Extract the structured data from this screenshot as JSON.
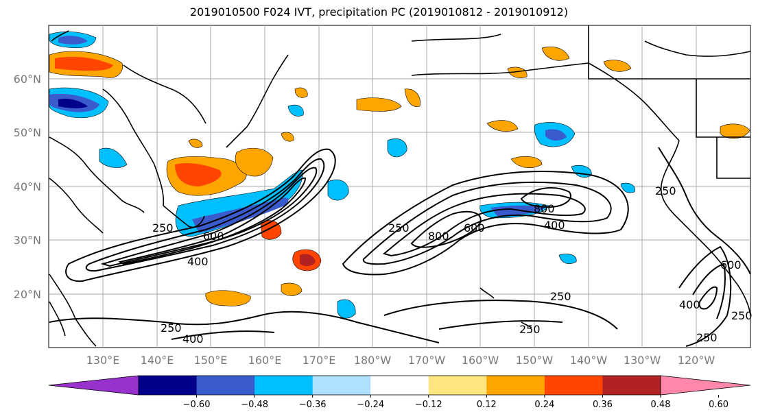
{
  "title": "2019010500 F024 IVT, precipitation PC (2019010812 - 2019010912)",
  "lat_labels": [
    "60°N",
    "50°N",
    "40°N",
    "30°N",
    "20°N"
  ],
  "lon_labels": [
    "130°E",
    "140°E",
    "150°E",
    "160°E",
    "170°E",
    "180°W",
    "170°W",
    "160°W",
    "150°W",
    "140°W",
    "130°W",
    "120°W"
  ],
  "colorbar": {
    "ticks": [
      "−0.60",
      "−0.48",
      "−0.36",
      "−0.24",
      "−0.12",
      "0.12",
      "0.24",
      "0.36",
      "0.48",
      "0.60"
    ],
    "colors": [
      "#9932cc",
      "#00008b",
      "#3a5bcc",
      "#00bfff",
      "#b0e0ff",
      "#ffffff",
      "#ffe680",
      "#ffa500",
      "#ff4500",
      "#b22222",
      "#ff88aa"
    ]
  },
  "contour_labels": [
    "250",
    "600",
    "400",
    "250",
    "400",
    "250",
    "600",
    "800",
    "800",
    "400",
    "250",
    "250",
    "250",
    "600",
    "400",
    "250",
    "250"
  ]
}
